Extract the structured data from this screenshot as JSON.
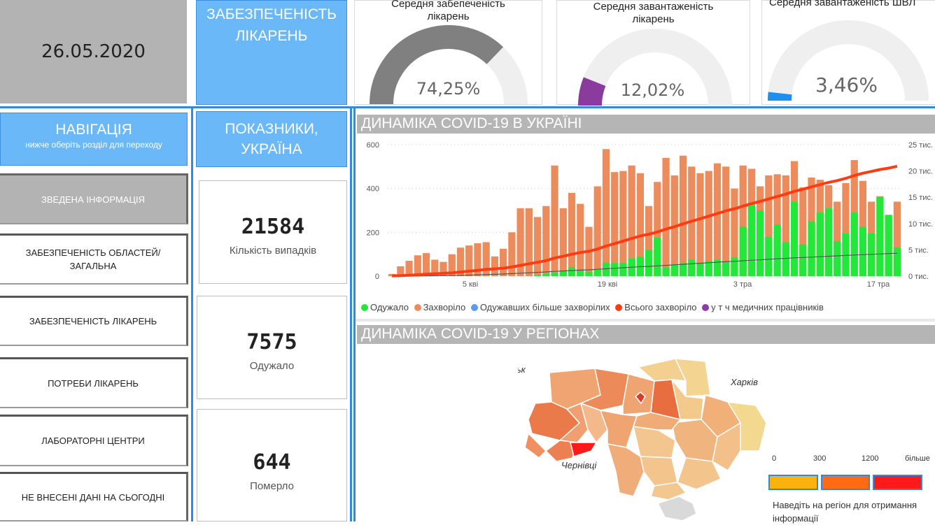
{
  "header": {
    "date": "26.05.2020",
    "section_title": "ЗАБЕЗПЕЧЕНІСТЬ ЛІКАРЕНЬ"
  },
  "gauges": [
    {
      "title": "Середня забепеченість лікарень",
      "value": "74,25%",
      "fraction": 0.7425,
      "color": "#808080"
    },
    {
      "title": "Середня завантаженість лікарень",
      "value": "12,02%",
      "fraction": 0.1202,
      "color": "#8b3a9e"
    },
    {
      "title": "Середня завантаженість ШВЛ",
      "value": "3,46%",
      "fraction": 0.0346,
      "color": "#1e8ef0"
    }
  ],
  "navigation": {
    "title": "НАВІГАЦІЯ",
    "subtitle": "нижче оберіть розділ для переходу",
    "items": [
      {
        "label": "ЗВЕДЕНА ІНФОРМАЦІЯ"
      },
      {
        "label": "ЗАБЕЗПЕЧЕНІСТЬ ОБЛАСТЕЙ/ ЗАГАЛЬНА"
      },
      {
        "label": "ЗАБЕЗПЕЧЕНІСТЬ ЛІКАРЕНЬ"
      },
      {
        "label": "ПОТРЕБИ ЛІКАРЕНЬ"
      },
      {
        "label": "ЛАБОРАТОРНІ ЦЕНТРИ"
      },
      {
        "label": "НЕ ВНЕСЕНІ ДАНІ НА СЬОГОДНІ"
      }
    ]
  },
  "indicators": {
    "title": "ПОКАЗНИКИ, УКРАЇНА",
    "cards": [
      {
        "value": "21584",
        "label": "Кількість випадків"
      },
      {
        "value": "7575",
        "label": "Одужало"
      },
      {
        "value": "644",
        "label": "Померло"
      }
    ]
  },
  "dynamics_section": {
    "title": "ДИНАМІКА COVID-19 В УКРАЇНІ",
    "legend": [
      {
        "label": "Одужало",
        "color": "#22e83a"
      },
      {
        "label": "Захворіло",
        "color": "#ec8c5c"
      },
      {
        "label": "Одужавших більше захворілих",
        "color": "#5b9bf0"
      },
      {
        "label": "Всього захворіло",
        "color": "#ff3b14"
      },
      {
        "label": "у т ч медичних працівників",
        "color": "#8e3aa8"
      }
    ]
  },
  "chart_data": {
    "type": "bar",
    "title": "ДИНАМІКА COVID-19 В УКРАЇНІ",
    "x_ticks": [
      "5 кві",
      "19 кві",
      "3 тра",
      "17 тра"
    ],
    "y_left_ticks": [
      "0",
      "200",
      "400",
      "600"
    ],
    "y_left_range": [
      0,
      600
    ],
    "y_right_ticks": [
      "0 тис.",
      "5 тис.",
      "10 тис.",
      "15 тис.",
      "20 тис.",
      "25 тис."
    ],
    "y_right_range": [
      0,
      25000
    ],
    "series": [
      {
        "name": "Захворіло",
        "values": [
          10,
          45,
          70,
          95,
          105,
          75,
          65,
          100,
          130,
          140,
          150,
          155,
          90,
          125,
          200,
          310,
          310,
          270,
          320,
          505,
          310,
          380,
          330,
          225,
          410,
          580,
          475,
          480,
          505,
          470,
          320,
          430,
          540,
          460,
          550,
          500,
          470,
          480,
          515,
          500,
          400,
          505,
          490,
          410,
          460,
          465,
          460,
          525,
          405,
          450,
          440,
          415,
          340,
          425,
          530,
          435,
          340,
          365,
          265,
          340
        ]
      },
      {
        "name": "Одужало",
        "values": [
          0,
          0,
          0,
          0,
          0,
          0,
          0,
          0,
          0,
          0,
          0,
          0,
          0,
          0,
          0,
          0,
          0,
          5,
          10,
          15,
          25,
          40,
          30,
          20,
          30,
          60,
          60,
          60,
          80,
          90,
          120,
          175,
          40,
          55,
          60,
          75,
          60,
          70,
          75,
          70,
          85,
          225,
          325,
          300,
          180,
          235,
          155,
          340,
          145,
          250,
          290,
          310,
          160,
          195,
          290,
          225,
          195,
          360,
          280,
          130
        ]
      },
      {
        "name": "Одужавших більше захворілих",
        "values": [
          0,
          0,
          0,
          0,
          0,
          0,
          0,
          0,
          0,
          0,
          0,
          0,
          0,
          0,
          0,
          0,
          0,
          0,
          0,
          0,
          0,
          0,
          0,
          0,
          0,
          0,
          0,
          0,
          0,
          0,
          0,
          0,
          0,
          0,
          0,
          0,
          0,
          0,
          0,
          0,
          0,
          0,
          0,
          0,
          0,
          0,
          0,
          0,
          0,
          0,
          0,
          0,
          0,
          0,
          0,
          0,
          0,
          0,
          0,
          0
        ]
      },
      {
        "name": "Всього захворіло",
        "values": [
          50,
          100,
          170,
          260,
          370,
          450,
          540,
          630,
          790,
          950,
          1110,
          1280,
          1380,
          1510,
          1740,
          2050,
          2360,
          2630,
          2950,
          3450,
          3770,
          4160,
          4490,
          4730,
          5140,
          5720,
          6200,
          6680,
          7170,
          7650,
          7960,
          8400,
          8950,
          9400,
          9950,
          10450,
          10920,
          11410,
          11920,
          12420,
          12820,
          13330,
          13800,
          14220,
          14680,
          15150,
          15600,
          16130,
          16530,
          16980,
          17420,
          17830,
          18180,
          18600,
          19130,
          19570,
          19920,
          20280,
          20550,
          20900
        ]
      },
      {
        "name": "у т ч медичних працівників",
        "values": [
          0,
          0,
          10,
          20,
          40,
          60,
          80,
          110,
          150,
          200,
          250,
          300,
          340,
          400,
          480,
          560,
          640,
          720,
          800,
          900,
          980,
          1060,
          1140,
          1200,
          1300,
          1400,
          1500,
          1600,
          1700,
          1800,
          1850,
          1950,
          2050,
          2150,
          2250,
          2350,
          2450,
          2550,
          2650,
          2750,
          2820,
          2920,
          3020,
          3100,
          3200,
          3300,
          3380,
          3480,
          3550,
          3620,
          3700,
          3780,
          3850,
          3930,
          4010,
          4080,
          4150,
          4220,
          4290,
          4350
        ]
      }
    ]
  },
  "regions_section": {
    "title": "ДИНАМІКА COVID-19 У РЕГІОНАХ",
    "city_labels": [
      "Луцьк",
      "Харків",
      "Чернівці"
    ],
    "scale_labels": [
      "0",
      "300",
      "1200",
      "більше"
    ],
    "scale_colors": [
      "#fbb10e",
      "#ff6a13",
      "#ff1a1a"
    ],
    "hint": "Наведіть на регіон для отримання інформації"
  }
}
